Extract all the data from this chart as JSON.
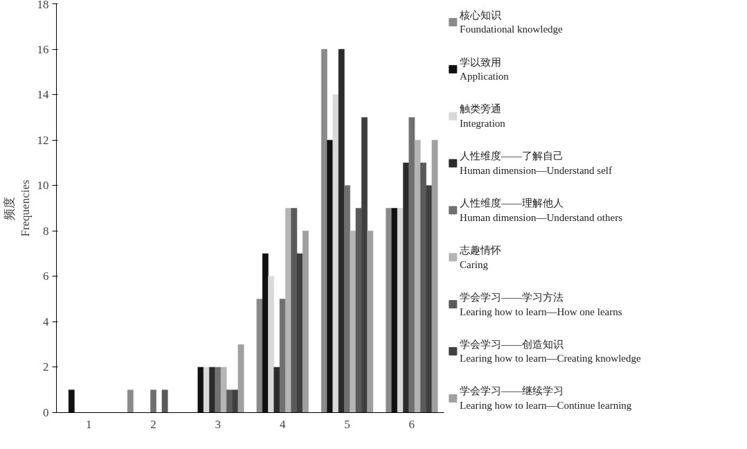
{
  "chart_data": {
    "type": "bar",
    "ylabel": "频度\nFrequencies",
    "categories": [
      "1",
      "2",
      "3",
      "4",
      "5",
      "6"
    ],
    "ylim": [
      0,
      18
    ],
    "yticks": [
      0,
      2,
      4,
      6,
      8,
      10,
      12,
      14,
      16,
      18
    ],
    "grid": false,
    "legend": "right",
    "series": [
      {
        "name": "核心知识\nFoundational knowledge",
        "color": "#8a8a8a",
        "values": [
          0,
          1,
          0,
          5,
          16,
          9
        ]
      },
      {
        "name": "学以致用\nApplication",
        "color": "#111111",
        "values": [
          1,
          0,
          2,
          7,
          12,
          9
        ]
      },
      {
        "name": "触类旁通\nIntegration",
        "color": "#d9d9d9",
        "values": [
          0,
          0,
          2,
          6,
          14,
          9
        ]
      },
      {
        "name": "人性维度——了解自己\nHuman dimension—Understand self",
        "color": "#2b2b2b",
        "values": [
          0,
          0,
          2,
          2,
          16,
          11
        ]
      },
      {
        "name": "人性维度——理解他人\nHuman dimension—Understand others",
        "color": "#707070",
        "values": [
          0,
          1,
          2,
          5,
          10,
          13
        ]
      },
      {
        "name": "志趣情怀\nCaring",
        "color": "#b5b5b5",
        "values": [
          0,
          0,
          2,
          9,
          8,
          12
        ]
      },
      {
        "name": "学会学习——学习方法\nLearing how to learn—How one learns",
        "color": "#5a5a5a",
        "values": [
          0,
          1,
          1,
          9,
          9,
          11
        ]
      },
      {
        "name": "学会学习——创造知识\nLearing how to learn—Creating knowledge",
        "color": "#3f3f3f",
        "values": [
          0,
          0,
          1,
          7,
          13,
          10
        ]
      },
      {
        "name": "学会学习——继续学习\nLearing how to learn—Continue learning",
        "color": "#a0a0a0",
        "values": [
          0,
          0,
          3,
          8,
          8,
          12
        ]
      }
    ]
  }
}
